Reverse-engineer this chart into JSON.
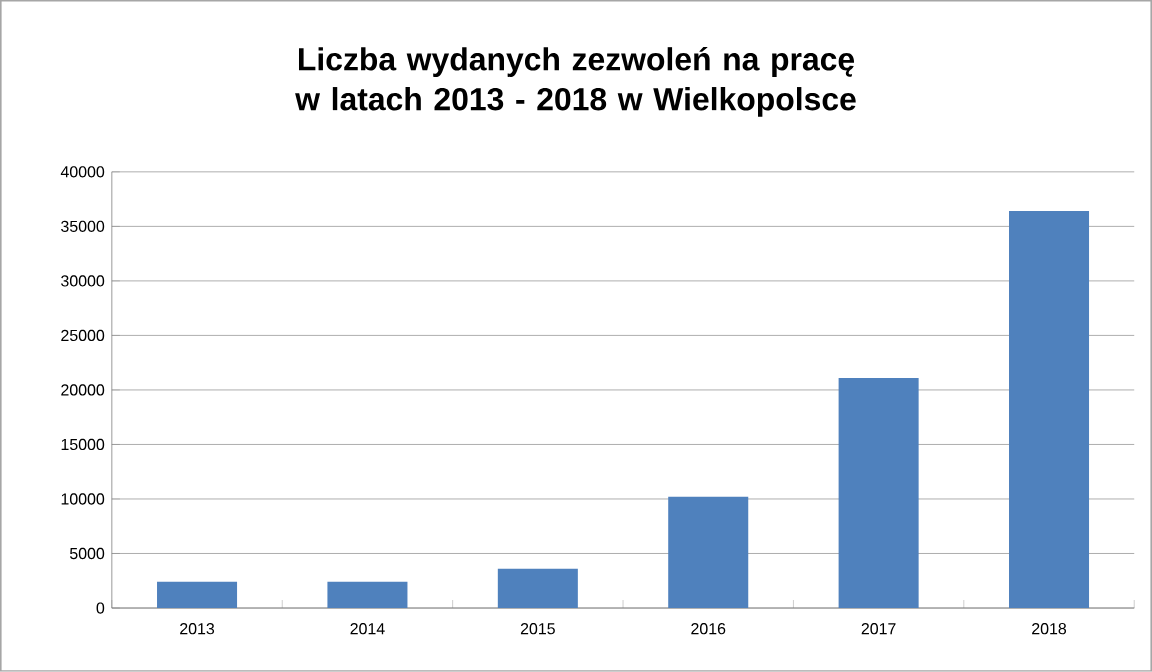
{
  "chart_data": {
    "type": "bar",
    "title": "Liczba wydanych zezwoleń na pracę w latach 2013 - 2018 w Wielkopolsce",
    "categories": [
      "2013",
      "2014",
      "2015",
      "2016",
      "2017",
      "2018"
    ],
    "values": [
      2400,
      2400,
      3600,
      10200,
      21100,
      36400
    ],
    "color": "#4f81bd",
    "ylim": [
      0,
      40000
    ],
    "yticks": [
      0,
      5000,
      10000,
      15000,
      20000,
      25000,
      30000,
      35000,
      40000
    ],
    "grid": "y"
  }
}
